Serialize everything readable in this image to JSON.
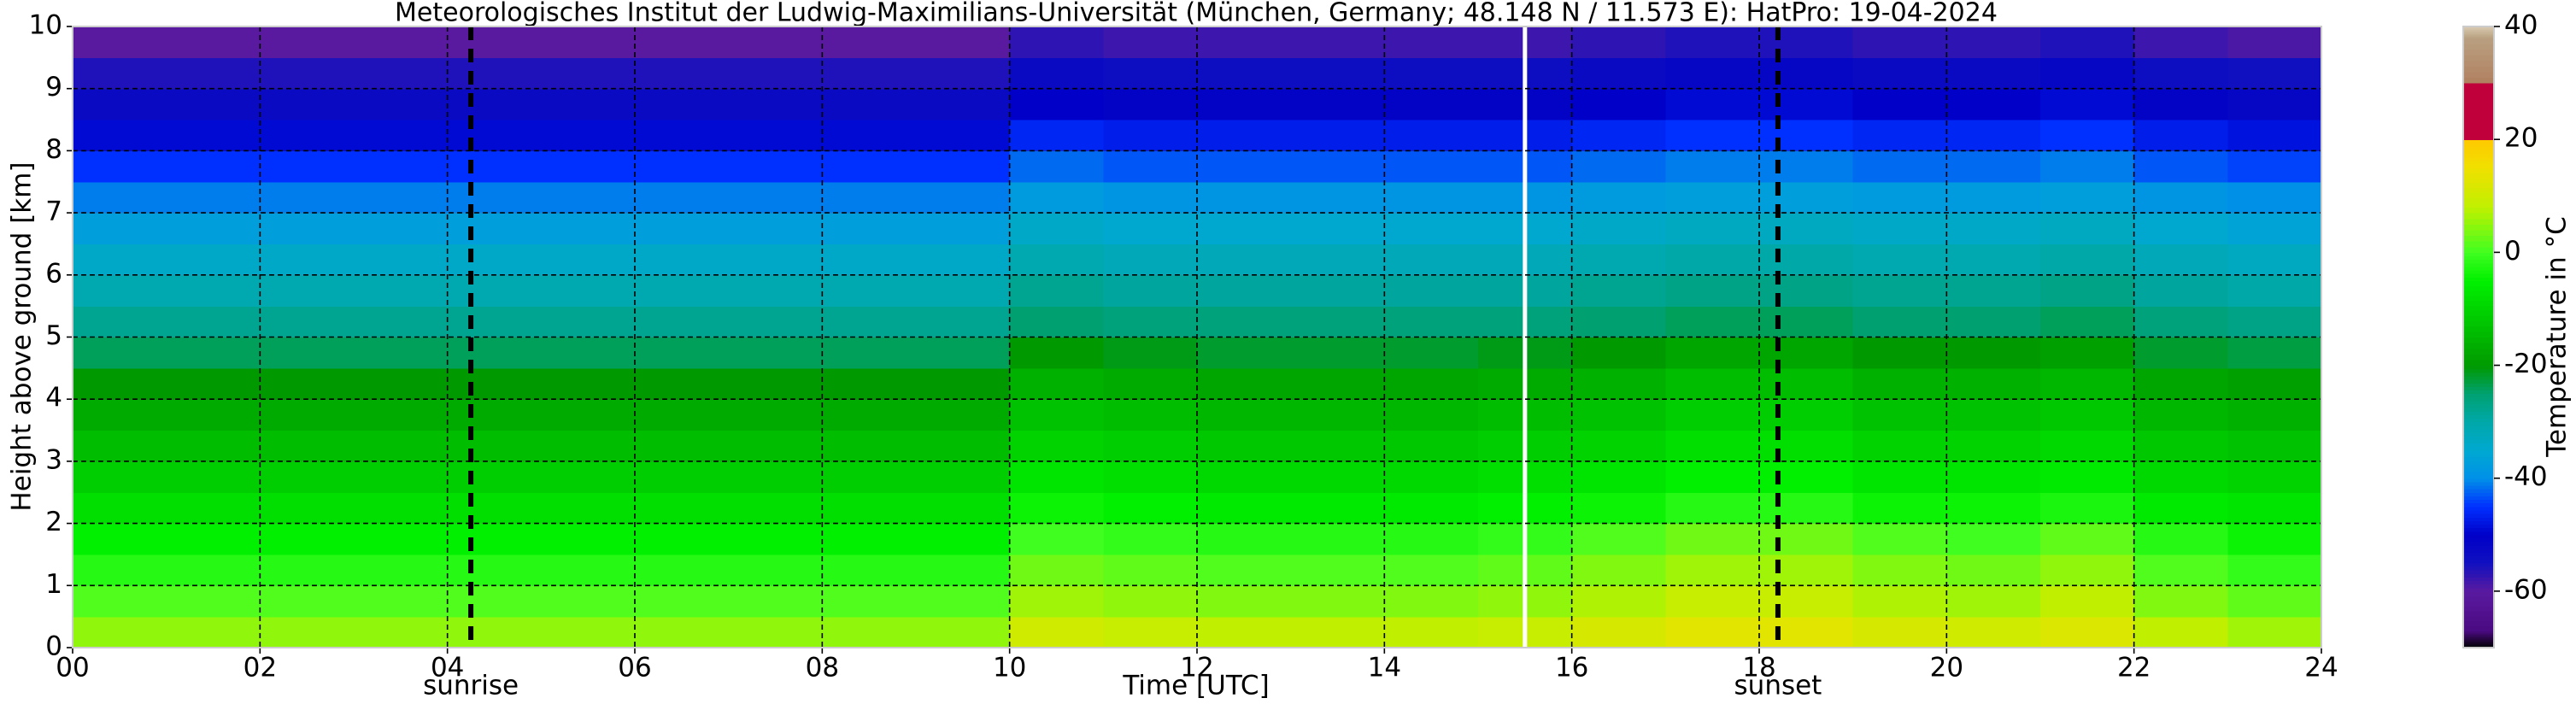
{
  "chart_data": {
    "type": "heatmap",
    "title": "Meteorologisches Institut der Ludwig-Maximilians-Universität (München, Germany; 48.148 N / 11.573 E):    HatPro: 19-04-2024",
    "xlabel": "Time [UTC]",
    "ylabel": "Height above ground [km]",
    "colorbar_label": "Temperature in °C",
    "xlim": [
      0,
      24
    ],
    "ylim": [
      0,
      10
    ],
    "xticks": [
      {
        "value": 0,
        "label": "00"
      },
      {
        "value": 2,
        "label": "02"
      },
      {
        "value": 4,
        "label": "04"
      },
      {
        "value": 6,
        "label": "06"
      },
      {
        "value": 8,
        "label": "08"
      },
      10,
      12,
      14,
      16,
      18,
      20,
      22,
      24
    ],
    "yticks": [
      0,
      1,
      2,
      3,
      4,
      5,
      6,
      7,
      8,
      9,
      10
    ],
    "clim": [
      -70,
      40
    ],
    "cticks": [
      -60,
      -40,
      -20,
      0,
      20,
      40
    ],
    "grid": true,
    "annotations": [
      {
        "text": "sunrise",
        "x": 4.25
      },
      {
        "text": "sunset",
        "x": 18.2
      }
    ],
    "gap": 15.5,
    "colormap": [
      {
        "value": -70,
        "color": "#000000"
      },
      {
        "value": -67,
        "color": "#4a0a80"
      },
      {
        "value": -60,
        "color": "#5a1aa0"
      },
      {
        "value": -55,
        "color": "#1010c0"
      },
      {
        "value": -50,
        "color": "#0000c8"
      },
      {
        "value": -45,
        "color": "#0030ff"
      },
      {
        "value": -40,
        "color": "#0090e8"
      },
      {
        "value": -35,
        "color": "#00a8d0"
      },
      {
        "value": -30,
        "color": "#00a8a8"
      },
      {
        "value": -25,
        "color": "#00a070"
      },
      {
        "value": -20,
        "color": "#009a00"
      },
      {
        "value": -12,
        "color": "#00c800"
      },
      {
        "value": -5,
        "color": "#00f000"
      },
      {
        "value": 0,
        "color": "#40ff20"
      },
      {
        "value": 8,
        "color": "#c0f000"
      },
      {
        "value": 15,
        "color": "#f0e000"
      },
      {
        "value": 20,
        "color": "#ffc800"
      },
      {
        "value": 20,
        "color": "#c0003a"
      },
      {
        "value": 30,
        "color": "#c0003a"
      },
      {
        "value": 30,
        "color": "#b08060"
      },
      {
        "value": 38,
        "color": "#b8a080"
      },
      {
        "value": 40,
        "color": "#d8c8b0"
      }
    ],
    "x": [
      0.5,
      1.5,
      2.5,
      3.5,
      4.5,
      5.5,
      6.5,
      7.5,
      8.5,
      9.5,
      10.5,
      11.5,
      12.5,
      13.5,
      14.5,
      15.5,
      16.5,
      17.5,
      18.5,
      19.5,
      20.5,
      21.5,
      22.5,
      23.5
    ],
    "y": [
      0.25,
      0.75,
      1.25,
      1.75,
      2.25,
      2.75,
      3.25,
      3.75,
      4.25,
      4.75,
      5.25,
      5.75,
      6.25,
      6.75,
      7.25,
      7.75,
      8.25,
      8.75,
      9.25,
      9.75
    ],
    "z": [
      [
        5,
        5,
        5,
        5,
        5,
        5,
        5,
        5,
        5,
        5,
        10,
        9,
        8,
        8,
        8,
        9,
        11,
        13,
        13,
        11,
        10,
        12,
        8,
        6
      ],
      [
        1,
        1,
        1,
        1,
        1,
        1,
        1,
        1,
        1,
        1,
        6,
        5,
        4,
        4,
        4,
        5,
        7,
        9,
        9,
        7,
        6,
        8,
        4,
        2
      ],
      [
        -2,
        -2,
        -2,
        -2,
        -2,
        -2,
        -2,
        -2,
        -2,
        -2,
        3,
        2,
        1,
        1,
        1,
        2,
        4,
        6,
        6,
        4,
        3,
        5,
        1,
        -1
      ],
      [
        -5,
        -5,
        -5,
        -5,
        -5,
        -5,
        -5,
        -5,
        -5,
        -5,
        0,
        -1,
        -2,
        -2,
        -2,
        -1,
        1,
        3,
        3,
        1,
        0,
        2,
        -2,
        -4
      ],
      [
        -8,
        -8,
        -8,
        -8,
        -8,
        -8,
        -8,
        -8,
        -8,
        -8,
        -4,
        -5,
        -6,
        -6,
        -6,
        -5,
        -4,
        -2,
        -2,
        -4,
        -4,
        -3,
        -6,
        -7
      ],
      [
        -11,
        -11,
        -11,
        -11,
        -11,
        -11,
        -11,
        -11,
        -11,
        -11,
        -7,
        -8,
        -9,
        -9,
        -9,
        -8,
        -7,
        -5,
        -5,
        -7,
        -7,
        -6,
        -9,
        -10
      ],
      [
        -14,
        -14,
        -14,
        -14,
        -14,
        -14,
        -14,
        -14,
        -14,
        -14,
        -10,
        -11,
        -12,
        -12,
        -12,
        -11,
        -10,
        -8,
        -8,
        -10,
        -10,
        -9,
        -12,
        -13
      ],
      [
        -17,
        -17,
        -17,
        -17,
        -17,
        -17,
        -17,
        -17,
        -17,
        -17,
        -13,
        -14,
        -15,
        -15,
        -15,
        -14,
        -13,
        -11,
        -11,
        -13,
        -13,
        -12,
        -15,
        -16
      ],
      [
        -20,
        -20,
        -20,
        -20,
        -20,
        -20,
        -20,
        -20,
        -20,
        -20,
        -16,
        -17,
        -18,
        -18,
        -18,
        -17,
        -16,
        -14,
        -14,
        -16,
        -16,
        -15,
        -18,
        -19
      ],
      [
        -24,
        -24,
        -24,
        -24,
        -24,
        -24,
        -24,
        -24,
        -24,
        -24,
        -20,
        -21,
        -22,
        -22,
        -22,
        -21,
        -20,
        -18,
        -18,
        -20,
        -20,
        -19,
        -22,
        -23
      ],
      [
        -28,
        -28,
        -28,
        -28,
        -28,
        -28,
        -28,
        -28,
        -28,
        -28,
        -25,
        -26,
        -26,
        -26,
        -26,
        -26,
        -25,
        -24,
        -24,
        -25,
        -25,
        -24,
        -26,
        -27
      ],
      [
        -31,
        -31,
        -31,
        -31,
        -31,
        -31,
        -31,
        -31,
        -31,
        -31,
        -28,
        -29,
        -29,
        -29,
        -29,
        -29,
        -28,
        -27,
        -27,
        -28,
        -28,
        -27,
        -29,
        -30
      ],
      [
        -34,
        -34,
        -34,
        -34,
        -34,
        -34,
        -34,
        -34,
        -34,
        -34,
        -31,
        -32,
        -32,
        -32,
        -32,
        -32,
        -31,
        -30,
        -30,
        -31,
        -31,
        -30,
        -32,
        -33
      ],
      [
        -37,
        -37,
        -37,
        -37,
        -37,
        -37,
        -37,
        -37,
        -37,
        -37,
        -34,
        -35,
        -35,
        -35,
        -35,
        -35,
        -34,
        -33,
        -33,
        -34,
        -34,
        -33,
        -35,
        -36
      ],
      [
        -41,
        -41,
        -41,
        -41,
        -41,
        -41,
        -41,
        -41,
        -41,
        -41,
        -38,
        -39,
        -39,
        -39,
        -39,
        -39,
        -38,
        -37,
        -37,
        -38,
        -38,
        -37,
        -39,
        -40
      ],
      [
        -45,
        -45,
        -45,
        -45,
        -45,
        -45,
        -45,
        -45,
        -45,
        -45,
        -42,
        -43,
        -43,
        -43,
        -43,
        -43,
        -42,
        -41,
        -41,
        -42,
        -42,
        -41,
        -43,
        -44
      ],
      [
        -49,
        -49,
        -49,
        -49,
        -49,
        -49,
        -49,
        -49,
        -49,
        -49,
        -46,
        -47,
        -47,
        -47,
        -47,
        -47,
        -46,
        -45,
        -45,
        -46,
        -46,
        -45,
        -47,
        -48
      ],
      [
        -53,
        -53,
        -53,
        -53,
        -53,
        -53,
        -53,
        -53,
        -53,
        -53,
        -50,
        -51,
        -51,
        -51,
        -51,
        -51,
        -50,
        -49,
        -49,
        -50,
        -50,
        -49,
        -51,
        -52
      ],
      [
        -56,
        -56,
        -56,
        -56,
        -56,
        -56,
        -56,
        -56,
        -56,
        -56,
        -53,
        -54,
        -54,
        -54,
        -54,
        -54,
        -53,
        -52,
        -52,
        -53,
        -53,
        -52,
        -54,
        -55
      ],
      [
        -60,
        -60,
        -60,
        -60,
        -60,
        -60,
        -60,
        -60,
        -60,
        -60,
        -57,
        -58,
        -58,
        -58,
        -58,
        -58,
        -57,
        -56,
        -56,
        -57,
        -57,
        -56,
        -58,
        -59
      ]
    ]
  }
}
